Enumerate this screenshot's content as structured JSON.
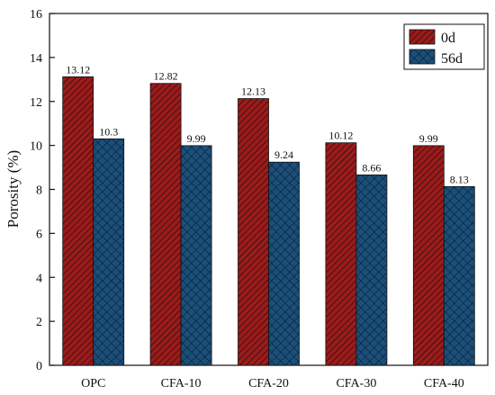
{
  "chart_data": {
    "type": "bar",
    "title": "",
    "xlabel": "",
    "ylabel": "Porosity (%)",
    "ylim": [
      0,
      16
    ],
    "yticks": [
      0,
      2,
      4,
      6,
      8,
      10,
      12,
      14,
      16
    ],
    "categories": [
      "OPC",
      "CFA-10",
      "CFA-20",
      "CFA-30",
      "CFA-40"
    ],
    "series": [
      {
        "name": "0d",
        "values": [
          13.12,
          12.82,
          12.13,
          10.12,
          9.99
        ],
        "labels": [
          "13.12",
          "12.82",
          "12.13",
          "10.12",
          "9.99"
        ],
        "color": "#9b1b1b",
        "pattern": "diagonal-hatch"
      },
      {
        "name": "56d",
        "values": [
          10.3,
          9.99,
          9.24,
          8.66,
          8.13
        ],
        "labels": [
          "10.3",
          "9.99",
          "9.24",
          "8.66",
          "8.13"
        ],
        "color": "#1b4f7a",
        "pattern": "cross-hatch"
      }
    ],
    "grid": false,
    "legend_position": "top-right"
  }
}
